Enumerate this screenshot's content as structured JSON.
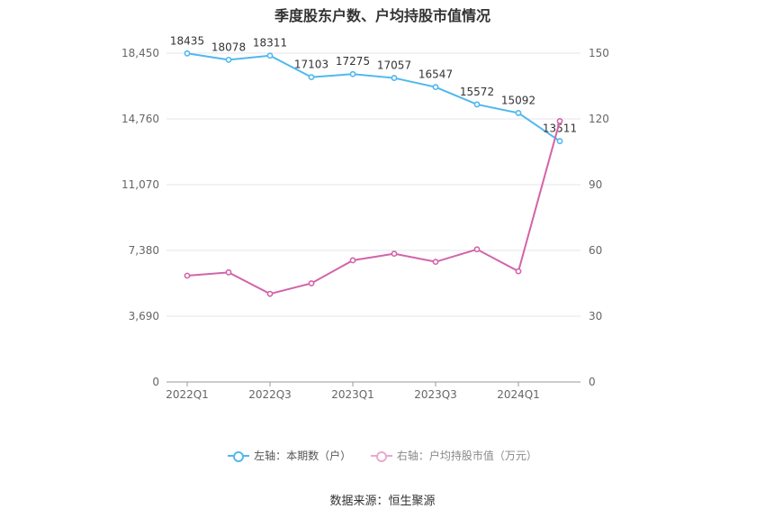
{
  "chart_data": {
    "type": "line",
    "title": "季度股东户数、户均持股市值情况",
    "categories": [
      "2022Q1",
      "2022Q2",
      "2022Q3",
      "2022Q4",
      "2023Q1",
      "2023Q2",
      "2023Q3",
      "2023Q4",
      "2024Q1",
      "2024Q2"
    ],
    "x_tick_labels": [
      "2022Q1",
      "2022Q3",
      "2023Q1",
      "2023Q3",
      "2024Q1"
    ],
    "left_axis": {
      "ticks": [
        "0",
        "3,690",
        "7,380",
        "11,070",
        "14,760",
        "18,450"
      ],
      "ylim": [
        0,
        18450
      ]
    },
    "right_axis": {
      "ticks": [
        "0",
        "30",
        "60",
        "90",
        "120",
        "150"
      ],
      "ylim": [
        0,
        150
      ]
    },
    "grid": true,
    "legend_position": "bottom",
    "series": [
      {
        "name": "左轴：本期数（户）",
        "axis": "left",
        "color": "#4fb8ee",
        "values": [
          18435,
          18078,
          18311,
          17103,
          17275,
          17057,
          16547,
          15572,
          15092,
          13511
        ],
        "labels": [
          "18435",
          "18078",
          "18311",
          "17103",
          "17275",
          "17057",
          "16547",
          "15572",
          "15092",
          "13511"
        ]
      },
      {
        "name": "右轴：户均持股市值（万元）",
        "axis": "right",
        "color": "#d264a8",
        "values": [
          48.5,
          50.0,
          40.2,
          45.0,
          55.5,
          58.5,
          54.8,
          60.5,
          50.5,
          119.0
        ]
      }
    ]
  },
  "footer": {
    "source": "数据来源：恒生聚源"
  }
}
